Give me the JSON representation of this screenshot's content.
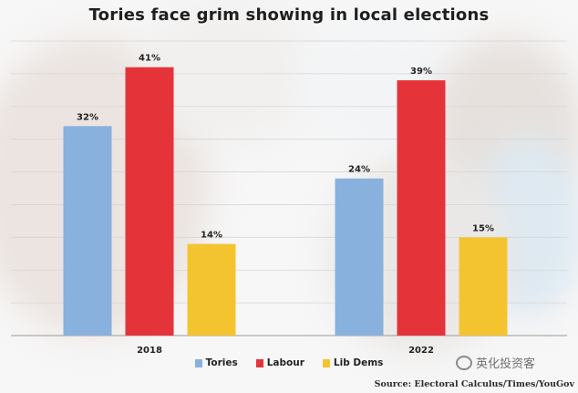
{
  "chart_data": {
    "type": "bar",
    "title": "Tories face grim showing in local elections",
    "categories": [
      "2018",
      "2022"
    ],
    "series": [
      {
        "name": "Tories",
        "color": "#88b1dd",
        "values": [
          32,
          24
        ],
        "labels": [
          "32%",
          "24%"
        ]
      },
      {
        "name": "Labour",
        "color": "#e5333a",
        "values": [
          41,
          39
        ],
        "labels": [
          "41%",
          "39%"
        ]
      },
      {
        "name": "Lib Dems",
        "color": "#f4c430",
        "values": [
          14,
          15
        ],
        "labels": [
          "14%",
          "15%"
        ]
      }
    ],
    "ylim": [
      0,
      45
    ],
    "grid": true,
    "legend_position": "bottom",
    "source": "Source: Electoral Calculus/Times/YouGov"
  },
  "watermark": {
    "text": "英化投资客"
  }
}
